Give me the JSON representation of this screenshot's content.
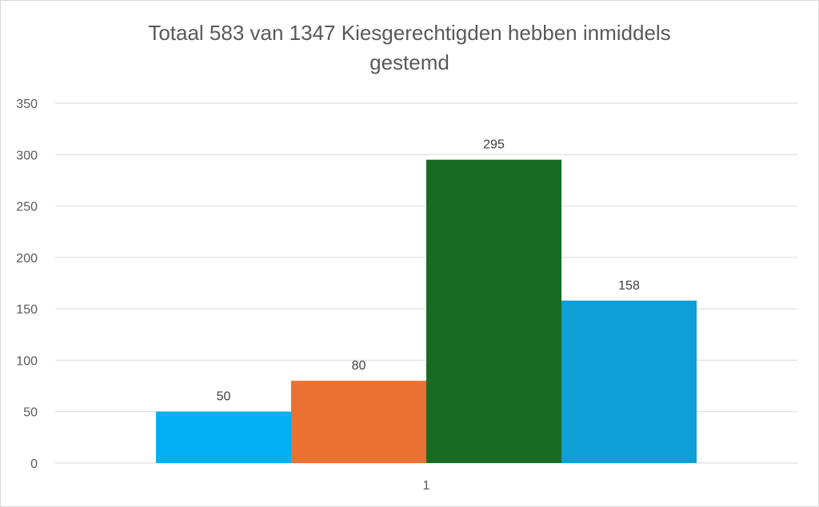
{
  "chart_data": {
    "type": "bar",
    "title_lines": [
      "Totaal 583 van 1347 Kiesgerechtigden hebben inmiddels",
      "gestemd"
    ],
    "categories": [
      "1"
    ],
    "series": [
      {
        "values": [
          50
        ],
        "color": "#00B0F0"
      },
      {
        "values": [
          80
        ],
        "color": "#E97132"
      },
      {
        "values": [
          295
        ],
        "color": "#196B24"
      },
      {
        "values": [
          158
        ],
        "color": "#0F9ED5"
      }
    ],
    "xlabel": "",
    "ylabel": "",
    "ylim": [
      0,
      350
    ],
    "yticks": [
      0,
      50,
      100,
      150,
      200,
      250,
      300,
      350
    ],
    "grid": true,
    "data_labels": true,
    "legend": "none"
  }
}
